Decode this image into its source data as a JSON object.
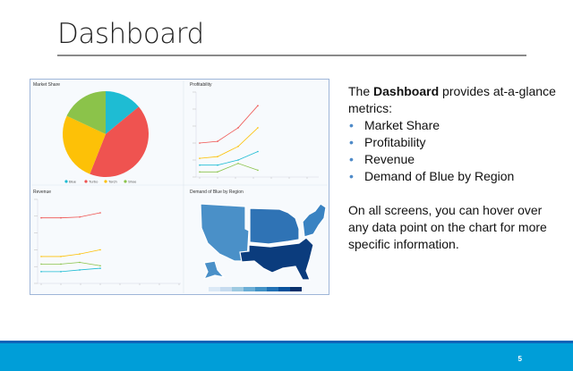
{
  "slide": {
    "title": "Dashboard",
    "page_number": "5",
    "footer_color": "#009ed8",
    "footer_stripe_color": "#0b63b8"
  },
  "body": {
    "intro_prefix": "The ",
    "intro_bold": "Dashboard",
    "intro_suffix": " provides at-a-glance metrics:",
    "bullets": [
      "Market Share",
      "Profitability",
      "Revenue",
      "Demand of Blue by Region"
    ],
    "bullet_glyph": "•",
    "closing": "On all screens, you can hover over any data point on the chart for more specific information."
  },
  "dashboard": {
    "panels": {
      "market_share": "Market Share",
      "profitability": "Profitability",
      "revenue": "Revenue",
      "demand": "Demand of Blue by Region"
    },
    "colors": {
      "blue": "#1ebcd3",
      "red": "#ef5350",
      "yellow": "#fdc107",
      "green": "#8bc34a"
    }
  },
  "chart_data": [
    {
      "type": "pie",
      "title": "Market Share",
      "legend": [
        "Blue",
        "Turbo",
        "Torch",
        "Shoe"
      ],
      "values": [
        14,
        42,
        26,
        18
      ],
      "colors": [
        "#1ebcd3",
        "#ef5350",
        "#fdc107",
        "#8bc34a"
      ],
      "legend_position": "bottom"
    },
    {
      "type": "line",
      "title": "Profitability",
      "x": [
        1,
        2,
        3,
        4
      ],
      "ylim": [
        0,
        5
      ],
      "series": [
        {
          "color": "#ef5350",
          "values": [
            2.0,
            2.1,
            2.9,
            4.2
          ]
        },
        {
          "color": "#fdc107",
          "values": [
            1.1,
            1.2,
            1.8,
            2.9
          ]
        },
        {
          "color": "#1ebcd3",
          "values": [
            0.7,
            0.7,
            1.0,
            1.5
          ]
        },
        {
          "color": "#8bc34a",
          "values": [
            0.3,
            0.3,
            0.8,
            0.4
          ]
        }
      ]
    },
    {
      "type": "line",
      "title": "Revenue",
      "x": [
        1,
        2,
        3,
        4
      ],
      "ylim": [
        0,
        5
      ],
      "series": [
        {
          "color": "#ef5350",
          "values": [
            3.9,
            3.9,
            3.95,
            4.2
          ]
        },
        {
          "color": "#fdc107",
          "values": [
            1.6,
            1.6,
            1.75,
            2.0
          ]
        },
        {
          "color": "#8bc34a",
          "values": [
            1.15,
            1.15,
            1.25,
            1.05
          ]
        },
        {
          "color": "#1ebcd3",
          "values": [
            0.7,
            0.7,
            0.8,
            0.9
          ]
        }
      ]
    },
    {
      "type": "heatmap",
      "title": "Demand of Blue by Region",
      "regions": [
        {
          "region": "West",
          "color": "#4a90c8"
        },
        {
          "region": "Midwest",
          "color": "#2f73b5"
        },
        {
          "region": "Northeast",
          "color": "#3a83c2"
        },
        {
          "region": "South",
          "color": "#0b3c7d"
        },
        {
          "region": "Alaska",
          "color": "#4a90c8"
        }
      ],
      "scale_colors": [
        "#dbe9f6",
        "#c6dbef",
        "#9ecae1",
        "#6baed6",
        "#4292c6",
        "#2171b5",
        "#08519c",
        "#08306b"
      ]
    }
  ]
}
